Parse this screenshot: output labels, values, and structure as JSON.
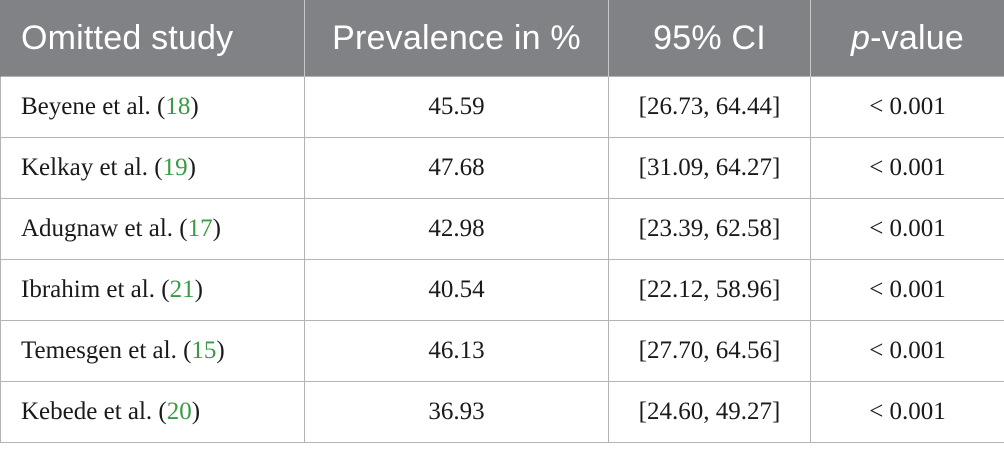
{
  "table": {
    "headers": {
      "study": "Omitted study",
      "prevalence": "Prevalence in %",
      "ci": "95% CI",
      "pvalue_italic": "p",
      "pvalue_rest": "-value"
    },
    "rows": [
      {
        "author": "Beyene et al. (",
        "ref": "18",
        "close": ")",
        "prevalence": "45.59",
        "ci": "[26.73, 64.44]",
        "p": "< 0.001"
      },
      {
        "author": "Kelkay et al. (",
        "ref": "19",
        "close": ")",
        "prevalence": "47.68",
        "ci": "[31.09, 64.27]",
        "p": "< 0.001"
      },
      {
        "author": "Adugnaw et al. (",
        "ref": "17",
        "close": ")",
        "prevalence": "42.98",
        "ci": "[23.39, 62.58]",
        "p": "< 0.001"
      },
      {
        "author": "Ibrahim et al. (",
        "ref": "21",
        "close": ")",
        "prevalence": "40.54",
        "ci": "[22.12, 58.96]",
        "p": "< 0.001"
      },
      {
        "author": "Temesgen et al. (",
        "ref": "15",
        "close": ")",
        "prevalence": "46.13",
        "ci": "[27.70, 64.56]",
        "p": "< 0.001"
      },
      {
        "author": "Kebede et al. (",
        "ref": "20",
        "close": ")",
        "prevalence": "36.93",
        "ci": "[24.60, 49.27]",
        "p": "< 0.001"
      }
    ]
  },
  "colors": {
    "header_bg": "#808285",
    "reference_link": "#3a9a46"
  }
}
